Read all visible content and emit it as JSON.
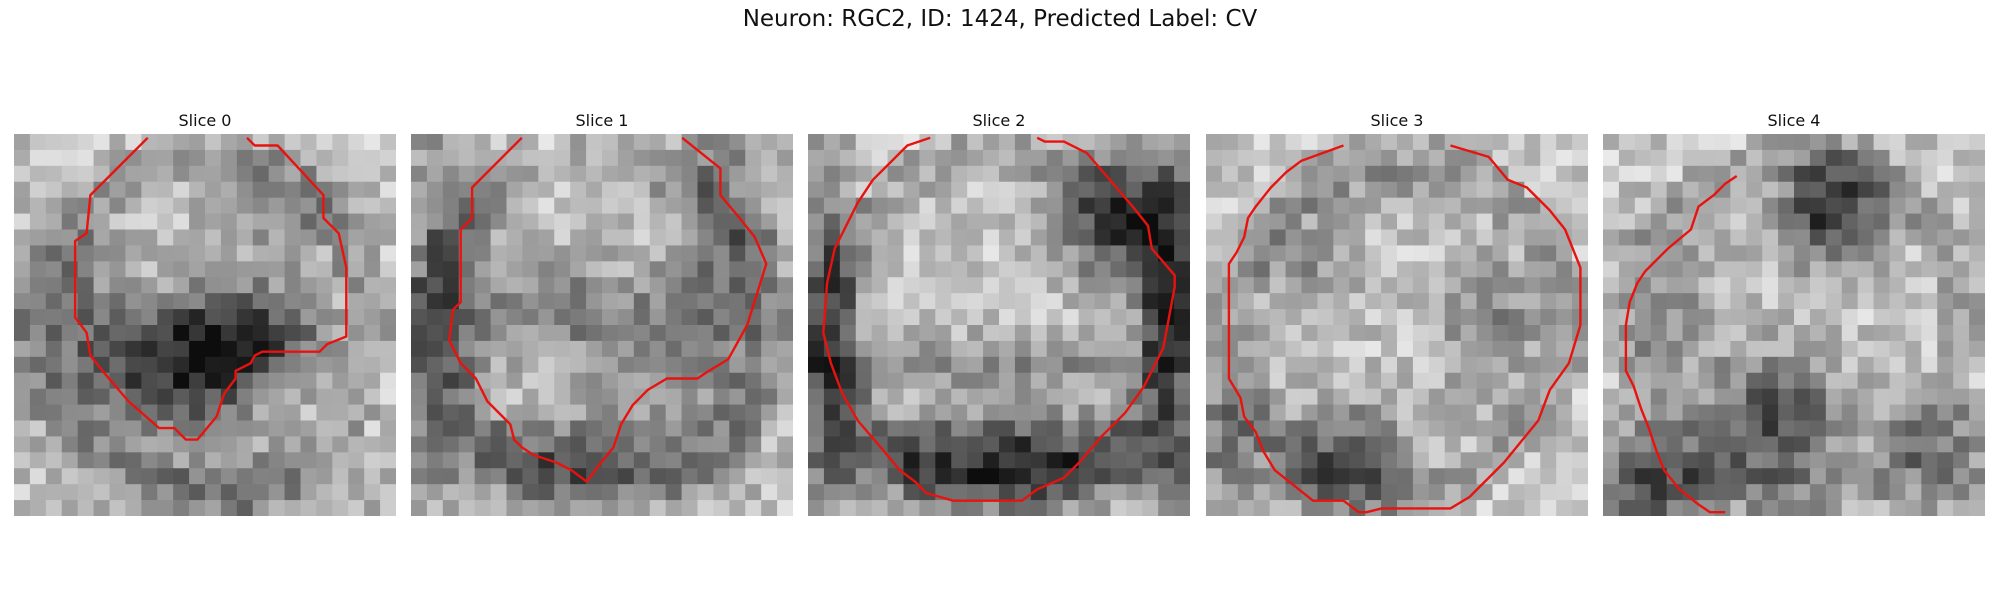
{
  "figure": {
    "title": "Neuron: RGC2, ID: 1424, Predicted Label: CV"
  },
  "panels": [
    {
      "title": "Slice 0"
    },
    {
      "title": "Slice 1"
    },
    {
      "title": "Slice 2"
    },
    {
      "title": "Slice 3"
    },
    {
      "title": "Slice 4"
    }
  ],
  "colors": {
    "contour": "#e8130f",
    "background": "#ffffff"
  },
  "image": {
    "colormap": "grayscale",
    "grid_size": 24
  }
}
